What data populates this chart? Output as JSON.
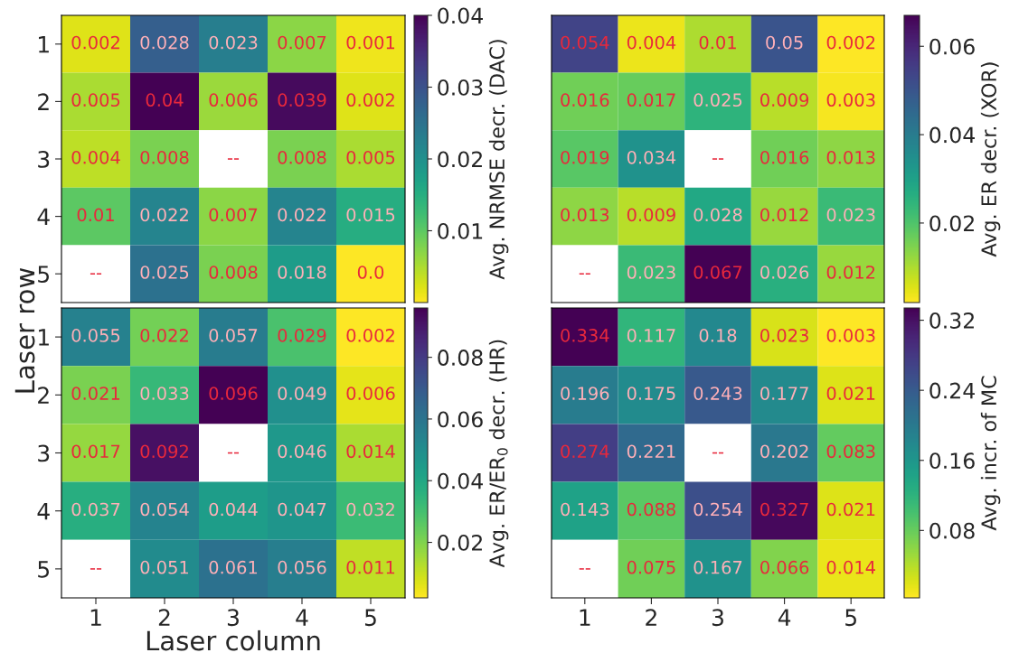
{
  "chart_data": [
    {
      "type": "heatmap",
      "categories": [
        "1",
        "2",
        "3",
        "4",
        "5"
      ],
      "y_categories": [
        "1",
        "2",
        "3",
        "4",
        "5"
      ],
      "clabel": "Avg. NRMSE decr. (DAC)",
      "clim": [
        0.0,
        0.04
      ],
      "cticks": [
        0.01,
        0.02,
        0.03,
        0.04
      ],
      "tick_labels": "y",
      "cells": [
        [
          0.002,
          0.028,
          0.023,
          0.007,
          0.001
        ],
        [
          0.005,
          0.04,
          0.006,
          0.039,
          0.002
        ],
        [
          0.004,
          0.008,
          null,
          0.008,
          0.005
        ],
        [
          0.01,
          0.022,
          0.007,
          0.022,
          0.015
        ],
        [
          null,
          0.025,
          0.008,
          0.018,
          0.0
        ]
      ],
      "cell_labels": [
        [
          "0.002",
          "0.028",
          "0.023",
          "0.007",
          "0.001"
        ],
        [
          "0.005",
          "0.04",
          "0.006",
          "0.039",
          "0.002"
        ],
        [
          "0.004",
          "0.008",
          "--",
          "0.008",
          "0.005"
        ],
        [
          "0.01",
          "0.022",
          "0.007",
          "0.022",
          "0.015"
        ],
        [
          "--",
          "0.025",
          "0.008",
          "0.018",
          "0.0"
        ]
      ]
    },
    {
      "type": "heatmap",
      "categories": [
        "1",
        "2",
        "3",
        "4",
        "5"
      ],
      "y_categories": [
        "1",
        "2",
        "3",
        "4",
        "5"
      ],
      "clabel": "Avg. ER decr. (XOR)",
      "clim": [
        0.002,
        0.067
      ],
      "cticks": [
        0.02,
        0.04,
        0.06
      ],
      "tick_labels": false,
      "cells": [
        [
          0.054,
          0.004,
          0.01,
          0.05,
          0.002
        ],
        [
          0.016,
          0.017,
          0.025,
          0.009,
          0.003
        ],
        [
          0.019,
          0.034,
          null,
          0.016,
          0.013
        ],
        [
          0.013,
          0.009,
          0.028,
          0.012,
          0.023
        ],
        [
          null,
          0.023,
          0.067,
          0.026,
          0.012
        ]
      ],
      "cell_labels": [
        [
          "0.054",
          "0.004",
          "0.01",
          "0.05",
          "0.002"
        ],
        [
          "0.016",
          "0.017",
          "0.025",
          "0.009",
          "0.003"
        ],
        [
          "0.019",
          "0.034",
          "--",
          "0.016",
          "0.013"
        ],
        [
          "0.013",
          "0.009",
          "0.028",
          "0.012",
          "0.023"
        ],
        [
          "--",
          "0.023",
          "0.067",
          "0.026",
          "0.012"
        ]
      ]
    },
    {
      "type": "heatmap",
      "categories": [
        "1",
        "2",
        "3",
        "4",
        "5"
      ],
      "y_categories": [
        "1",
        "2",
        "3",
        "4",
        "5"
      ],
      "xlabel": "Laser column",
      "ylabel": "Laser row",
      "clabel": "Avg. ER/ER$_{0}$ decr. (HR)",
      "clim": [
        0.002,
        0.096
      ],
      "cticks": [
        0.02,
        0.04,
        0.06,
        0.08
      ],
      "cells": [
        [
          0.055,
          0.022,
          0.057,
          0.029,
          0.002
        ],
        [
          0.021,
          0.033,
          0.096,
          0.049,
          0.006
        ],
        [
          0.017,
          0.092,
          null,
          0.046,
          0.014
        ],
        [
          0.037,
          0.054,
          0.044,
          0.047,
          0.032
        ],
        [
          null,
          0.051,
          0.061,
          0.056,
          0.011
        ]
      ],
      "cell_labels": [
        [
          "0.055",
          "0.022",
          "0.057",
          "0.029",
          "0.002"
        ],
        [
          "0.021",
          "0.033",
          "0.096",
          "0.049",
          "0.006"
        ],
        [
          "0.017",
          "0.092",
          "--",
          "0.046",
          "0.014"
        ],
        [
          "0.037",
          "0.054",
          "0.044",
          "0.047",
          "0.032"
        ],
        [
          "--",
          "0.051",
          "0.061",
          "0.056",
          "0.011"
        ]
      ]
    },
    {
      "type": "heatmap",
      "categories": [
        "1",
        "2",
        "3",
        "4",
        "5"
      ],
      "y_categories": [
        "1",
        "2",
        "3",
        "4",
        "5"
      ],
      "clabel": "Avg. incr. of MC",
      "clim": [
        0.003,
        0.334
      ],
      "cticks": [
        0.08,
        0.16,
        0.24,
        0.32
      ],
      "tick_labels": "x",
      "cells": [
        [
          0.334,
          0.117,
          0.18,
          0.023,
          0.003
        ],
        [
          0.196,
          0.175,
          0.243,
          0.177,
          0.021
        ],
        [
          0.274,
          0.221,
          null,
          0.202,
          0.083
        ],
        [
          0.143,
          0.088,
          0.254,
          0.327,
          0.021
        ],
        [
          null,
          0.075,
          0.167,
          0.066,
          0.014
        ]
      ],
      "cell_labels": [
        [
          "0.334",
          "0.117",
          "0.18",
          "0.023",
          "0.003"
        ],
        [
          "0.196",
          "0.175",
          "0.243",
          "0.177",
          "0.021"
        ],
        [
          "0.274",
          "0.221",
          "--",
          "0.202",
          "0.083"
        ],
        [
          "0.143",
          "0.088",
          "0.254",
          "0.327",
          "0.021"
        ],
        [
          "--",
          "0.075",
          "0.167",
          "0.066",
          "0.014"
        ]
      ]
    }
  ]
}
